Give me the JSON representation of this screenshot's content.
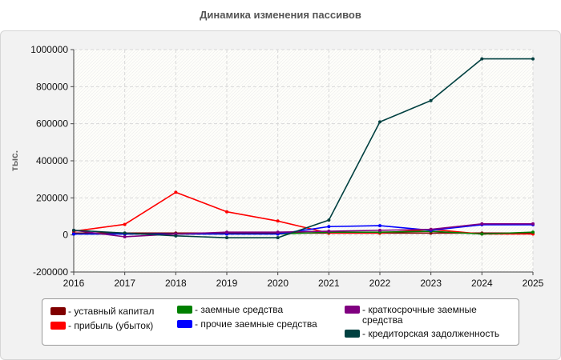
{
  "chart_data": {
    "type": "line",
    "title": "Динамика изменения пассивов",
    "ylabel": "тыс.",
    "xlabel": "",
    "x": [
      2016,
      2017,
      2018,
      2019,
      2020,
      2021,
      2022,
      2023,
      2024,
      2025
    ],
    "xlim": [
      2016,
      2025
    ],
    "ylim": [
      -200000,
      1000000
    ],
    "yticks": [
      -200000,
      0,
      200000,
      400000,
      600000,
      800000,
      1000000
    ],
    "ytick_labels": [
      "-200000",
      "0",
      "200000",
      "400000",
      "600000",
      "800000",
      "1000000"
    ],
    "xtick_labels": [
      "2016",
      "2017",
      "2018",
      "2019",
      "2020",
      "2021",
      "2022",
      "2023",
      "2024",
      "2025"
    ],
    "grid": true,
    "legend_position": "bottom",
    "series": [
      {
        "name": "уставный капитал",
        "color": "#800000",
        "values": [
          10000,
          10000,
          10000,
          10000,
          10000,
          10000,
          10000,
          10000,
          10000,
          10000
        ]
      },
      {
        "name": "прибыль (убыток)",
        "color": "#ff0000",
        "values": [
          20000,
          57000,
          230000,
          125000,
          75000,
          10000,
          10000,
          30000,
          5000,
          5000
        ]
      },
      {
        "name": "заемные средства",
        "color": "#008000",
        "values": [
          5000,
          5000,
          5000,
          5000,
          5000,
          15000,
          15000,
          20000,
          5000,
          15000
        ]
      },
      {
        "name": "прочие заемные средства",
        "color": "#0000ff",
        "values": [
          5000,
          5000,
          5000,
          5000,
          5000,
          45000,
          50000,
          25000,
          55000,
          55000
        ]
      },
      {
        "name": "краткосрочные заемные средства",
        "color": "#800080",
        "values": [
          25000,
          -10000,
          5000,
          15000,
          15000,
          20000,
          25000,
          30000,
          60000,
          60000
        ]
      },
      {
        "name": "кредиторская задолженность",
        "color": "#004040",
        "values": [
          25000,
          10000,
          -5000,
          -15000,
          -15000,
          80000,
          610000,
          725000,
          950000,
          950000
        ]
      }
    ]
  }
}
